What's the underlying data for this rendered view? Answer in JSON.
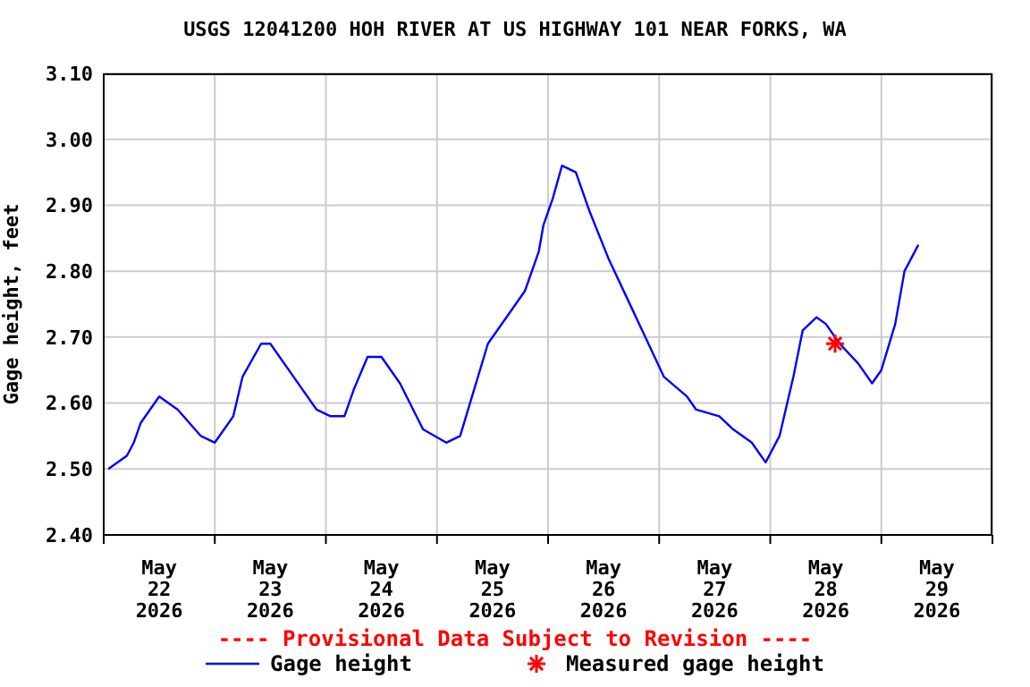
{
  "chart_data": {
    "type": "line",
    "title": "USGS 12041200 HOH RIVER AT US HIGHWAY 101 NEAR FORKS, WA",
    "ylabel": "Gage height, feet",
    "annotations": [
      "---- Provisional Data Subject to Revision ----"
    ],
    "xlim": [
      "2026-05-22T00:00",
      "2026-05-30T00:00"
    ],
    "xticks": [
      {
        "value": "2026-05-22T00:00",
        "label": null
      },
      {
        "value": "2026-05-22T12:00",
        "label": "May 22 2026"
      },
      {
        "value": "2026-05-23T00:00",
        "label": null
      },
      {
        "value": "2026-05-23T12:00",
        "label": "May 23 2026"
      },
      {
        "value": "2026-05-24T00:00",
        "label": null
      },
      {
        "value": "2026-05-24T12:00",
        "label": "May 24 2026"
      },
      {
        "value": "2026-05-25T00:00",
        "label": null
      },
      {
        "value": "2026-05-25T12:00",
        "label": "May 25 2026"
      },
      {
        "value": "2026-05-26T00:00",
        "label": null
      },
      {
        "value": "2026-05-26T12:00",
        "label": "May 26 2026"
      },
      {
        "value": "2026-05-27T00:00",
        "label": null
      },
      {
        "value": "2026-05-27T12:00",
        "label": "May 27 2026"
      },
      {
        "value": "2026-05-28T00:00",
        "label": null
      },
      {
        "value": "2026-05-28T12:00",
        "label": "May 28 2026"
      },
      {
        "value": "2026-05-29T00:00",
        "label": null
      },
      {
        "value": "2026-05-29T12:00",
        "label": "May 29 2026"
      },
      {
        "value": "2026-05-30T00:00",
        "label": null
      }
    ],
    "ylim": [
      2.4,
      3.1
    ],
    "yticks": [
      {
        "value": 2.4,
        "label": "2.40"
      },
      {
        "value": 2.5,
        "label": "2.50"
      },
      {
        "value": 2.6,
        "label": "2.60"
      },
      {
        "value": 2.7,
        "label": "2.70"
      },
      {
        "value": 2.8,
        "label": "2.80"
      },
      {
        "value": 2.9,
        "label": "2.90"
      },
      {
        "value": 3.0,
        "label": "3.00"
      },
      {
        "value": 3.1,
        "label": "3.10"
      }
    ],
    "grid": true,
    "legend": "bottom",
    "line_style": "solid",
    "series": [
      {
        "name": "Gage height",
        "type": "line",
        "color": "#0000ff",
        "marker": "none",
        "x": [
          "2026-05-22T01:00",
          "2026-05-22T05:00",
          "2026-05-22T06:30",
          "2026-05-22T08:00",
          "2026-05-22T10:00",
          "2026-05-22T12:00",
          "2026-05-22T16:00",
          "2026-05-22T21:00",
          "2026-05-23T00:00",
          "2026-05-23T04:00",
          "2026-05-23T06:00",
          "2026-05-23T10:00",
          "2026-05-23T12:00",
          "2026-05-23T17:00",
          "2026-05-23T22:00",
          "2026-05-24T01:00",
          "2026-05-24T04:00",
          "2026-05-24T06:00",
          "2026-05-24T09:00",
          "2026-05-24T12:00",
          "2026-05-24T16:00",
          "2026-05-24T21:00",
          "2026-05-25T02:00",
          "2026-05-25T05:00",
          "2026-05-25T08:00",
          "2026-05-25T11:00",
          "2026-05-25T15:00",
          "2026-05-25T19:00",
          "2026-05-25T22:00",
          "2026-05-25T23:00",
          "2026-05-26T01:00",
          "2026-05-26T03:00",
          "2026-05-26T06:00",
          "2026-05-26T09:00",
          "2026-05-26T13:00",
          "2026-05-26T17:00",
          "2026-05-26T21:00",
          "2026-05-27T01:00",
          "2026-05-27T06:00",
          "2026-05-27T08:00",
          "2026-05-27T13:00",
          "2026-05-27T16:00",
          "2026-05-27T20:00",
          "2026-05-27T23:00",
          "2026-05-28T02:00",
          "2026-05-28T05:00",
          "2026-05-28T07:00",
          "2026-05-28T10:00",
          "2026-05-28T12:00",
          "2026-05-28T15:00",
          "2026-05-28T19:00",
          "2026-05-28T22:00",
          "2026-05-29T00:00",
          "2026-05-29T03:00",
          "2026-05-29T05:00",
          "2026-05-29T08:00"
        ],
        "values": [
          2.5,
          2.52,
          2.54,
          2.57,
          2.59,
          2.61,
          2.59,
          2.55,
          2.54,
          2.58,
          2.64,
          2.69,
          2.69,
          2.64,
          2.59,
          2.58,
          2.58,
          2.62,
          2.67,
          2.67,
          2.63,
          2.56,
          2.54,
          2.55,
          2.62,
          2.69,
          2.73,
          2.77,
          2.83,
          2.87,
          2.91,
          2.96,
          2.95,
          2.89,
          2.82,
          2.76,
          2.7,
          2.64,
          2.61,
          2.59,
          2.58,
          2.56,
          2.54,
          2.51,
          2.55,
          2.64,
          2.71,
          2.73,
          2.72,
          2.69,
          2.66,
          2.63,
          2.65,
          2.72,
          2.8,
          2.84
        ]
      },
      {
        "name": "Measured gage height",
        "type": "scatter",
        "color": "#ff0000",
        "marker": "cross",
        "x": [
          "2026-05-28T14:00"
        ],
        "values": [
          2.69
        ]
      }
    ]
  }
}
